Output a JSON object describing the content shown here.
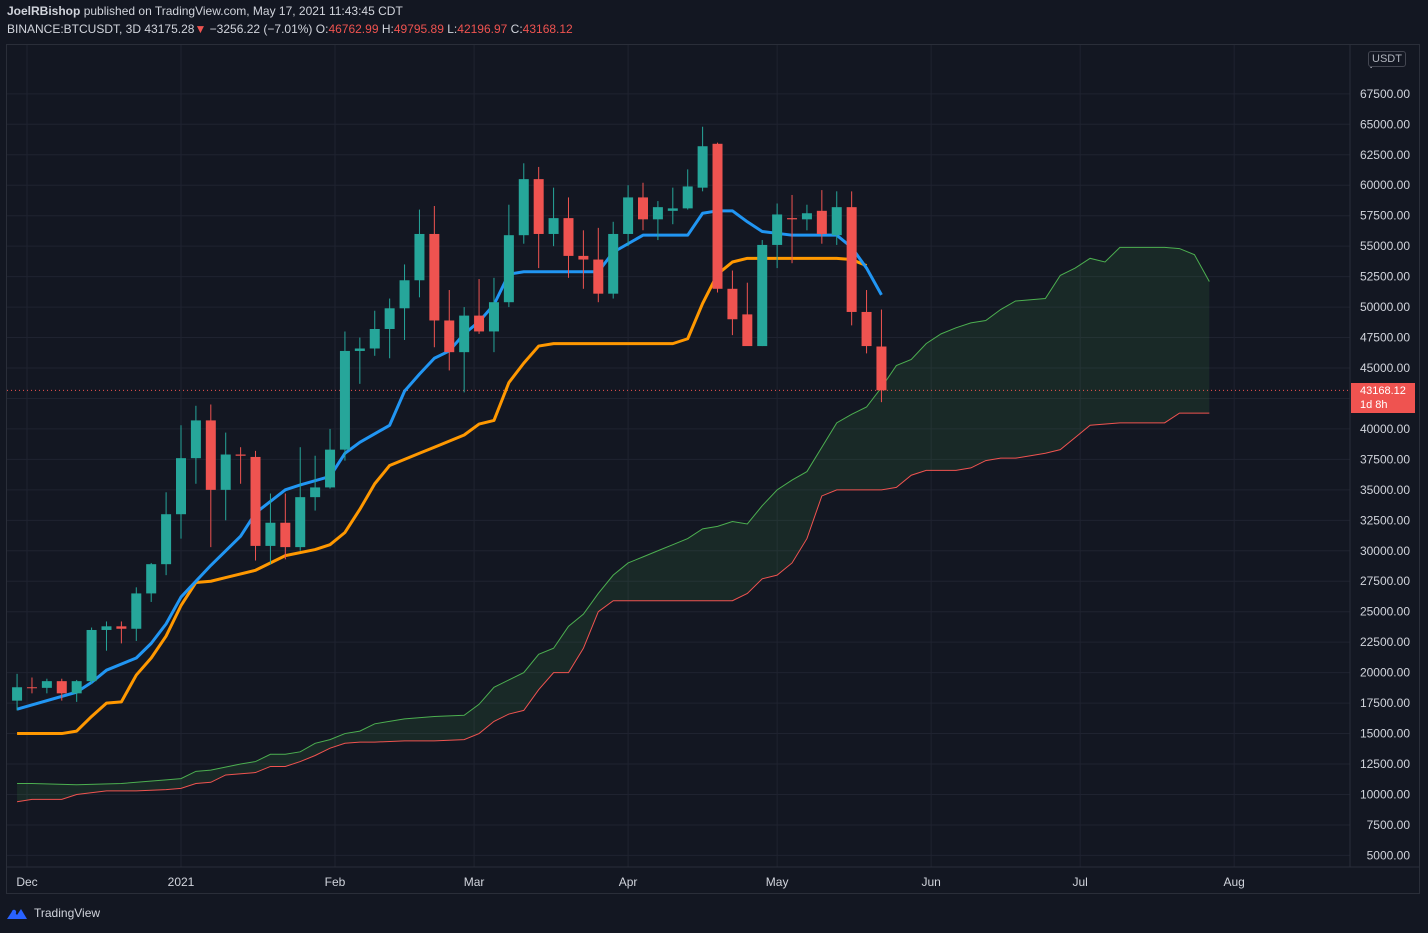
{
  "header": {
    "author": "JoelRBishop",
    "published_text": "published on TradingView.com, May 17, 2021 11:43:45 CDT",
    "symbol": "BINANCE:BTCUSDT, 3D",
    "last": "43175.28",
    "change_arrow": "▼",
    "change": "−3256.22 (−7.01%)",
    "o_label": "O:",
    "o": "46762.99",
    "h_label": "H:",
    "h": "49795.89",
    "l_label": "L:",
    "l": "42196.97",
    "c_label": "C:",
    "c": "43168.12"
  },
  "price_scale": {
    "currency": "USDT",
    "current_price": "43168.12",
    "countdown": "1d 8h",
    "top_label_partial": "7"
  },
  "footer": {
    "brand": "TradingView"
  },
  "colors": {
    "background": "#131722",
    "up": "#26a69a",
    "down": "#ef5350",
    "conversion_line": "#2196f3",
    "base_line": "#ff9800",
    "span_a": "#4caf50",
    "span_b": "#ef5350",
    "cloud_fill": "#1e3a2a",
    "grid": "#1f2330"
  },
  "chart_data": {
    "type": "candlestick",
    "title": "BINANCE:BTCUSDT, 3D",
    "indicator": "Ichimoku Cloud",
    "interval_days": 3,
    "y_axis": {
      "ticks": [
        5000,
        7500,
        10000,
        12500,
        15000,
        17500,
        20000,
        22500,
        25000,
        27500,
        30000,
        32500,
        35000,
        37500,
        40000,
        42500,
        45000,
        47500,
        50000,
        52500,
        55000,
        57500,
        60000,
        62500,
        65000,
        67500
      ],
      "tick_labels": [
        "5000.00",
        "7500.00",
        "10000.00",
        "12500.00",
        "15000.00",
        "17500.00",
        "20000.00",
        "22500.00",
        "25000.00",
        "27500.00",
        "30000.00",
        "32500.00",
        "35000.00",
        "37500.00",
        "40000.00",
        "42500.00",
        "45000.00",
        "47500.00",
        "50000.00",
        "52500.00",
        "55000.00",
        "57500.00",
        "60000.00",
        "62500.00",
        "65000.00",
        "67500.00"
      ],
      "range": [
        4000,
        70300
      ]
    },
    "x_axis": {
      "labels": [
        "Dec",
        "2021",
        "Feb",
        "Mar",
        "Apr",
        "May",
        "Jun",
        "Jul",
        "Aug"
      ],
      "label_dates": [
        "2020-12-01",
        "2021-01-01",
        "2021-02-01",
        "2021-03-01",
        "2021-04-01",
        "2021-05-01",
        "2021-06-01",
        "2021-07-01",
        "2021-08-01"
      ],
      "range": [
        "2020-11-28",
        "2021-08-16"
      ]
    },
    "candles": [
      {
        "date": "2020-11-29",
        "o": 17700,
        "h": 19900,
        "l": 16900,
        "c": 18800
      },
      {
        "date": "2020-12-02",
        "o": 18800,
        "h": 19600,
        "l": 18300,
        "c": 18750
      },
      {
        "date": "2020-12-05",
        "o": 18750,
        "h": 19500,
        "l": 18300,
        "c": 19300
      },
      {
        "date": "2020-12-08",
        "o": 19300,
        "h": 19500,
        "l": 17700,
        "c": 18300
      },
      {
        "date": "2020-12-11",
        "o": 18300,
        "h": 19400,
        "l": 17600,
        "c": 19300
      },
      {
        "date": "2020-12-14",
        "o": 19300,
        "h": 23700,
        "l": 19100,
        "c": 23500
      },
      {
        "date": "2020-12-17",
        "o": 23500,
        "h": 24200,
        "l": 21800,
        "c": 23800
      },
      {
        "date": "2020-12-20",
        "o": 23800,
        "h": 24200,
        "l": 22400,
        "c": 23600
      },
      {
        "date": "2020-12-23",
        "o": 23600,
        "h": 27000,
        "l": 22600,
        "c": 26500
      },
      {
        "date": "2020-12-26",
        "o": 26500,
        "h": 29000,
        "l": 25800,
        "c": 28900
      },
      {
        "date": "2020-12-29",
        "o": 28900,
        "h": 34800,
        "l": 28000,
        "c": 33000
      },
      {
        "date": "2021-01-01",
        "o": 33000,
        "h": 40300,
        "l": 31000,
        "c": 37600
      },
      {
        "date": "2021-01-04",
        "o": 37600,
        "h": 41900,
        "l": 35500,
        "c": 40700
      },
      {
        "date": "2021-01-07",
        "o": 40700,
        "h": 42000,
        "l": 30300,
        "c": 35000
      },
      {
        "date": "2021-01-10",
        "o": 35000,
        "h": 39700,
        "l": 32500,
        "c": 37900
      },
      {
        "date": "2021-01-13",
        "o": 37900,
        "h": 38500,
        "l": 35500,
        "c": 37800
      },
      {
        "date": "2021-01-16",
        "o": 37700,
        "h": 38200,
        "l": 29200,
        "c": 30400
      },
      {
        "date": "2021-01-19",
        "o": 30400,
        "h": 34700,
        "l": 28900,
        "c": 32300
      },
      {
        "date": "2021-01-22",
        "o": 32300,
        "h": 34700,
        "l": 29300,
        "c": 30300
      },
      {
        "date": "2021-01-25",
        "o": 30300,
        "h": 38500,
        "l": 30000,
        "c": 34400
      },
      {
        "date": "2021-01-28",
        "o": 34400,
        "h": 37800,
        "l": 33300,
        "c": 35200
      },
      {
        "date": "2021-01-31",
        "o": 35200,
        "h": 40000,
        "l": 35100,
        "c": 38300
      },
      {
        "date": "2021-02-03",
        "o": 38300,
        "h": 48000,
        "l": 37400,
        "c": 46400
      },
      {
        "date": "2021-02-06",
        "o": 46400,
        "h": 47500,
        "l": 43700,
        "c": 46600
      },
      {
        "date": "2021-02-09",
        "o": 46600,
        "h": 49700,
        "l": 46000,
        "c": 48200
      },
      {
        "date": "2021-02-12",
        "o": 48200,
        "h": 50700,
        "l": 45800,
        "c": 49900
      },
      {
        "date": "2021-02-15",
        "o": 49900,
        "h": 53500,
        "l": 47300,
        "c": 52200
      },
      {
        "date": "2021-02-18",
        "o": 52200,
        "h": 58000,
        "l": 50800,
        "c": 56000
      },
      {
        "date": "2021-02-21",
        "o": 56000,
        "h": 58300,
        "l": 46700,
        "c": 48900
      },
      {
        "date": "2021-02-24",
        "o": 48900,
        "h": 51400,
        "l": 44800,
        "c": 46300
      },
      {
        "date": "2021-02-27",
        "o": 46300,
        "h": 50000,
        "l": 43000,
        "c": 49300
      },
      {
        "date": "2021-03-02",
        "o": 49300,
        "h": 52300,
        "l": 47800,
        "c": 48000
      },
      {
        "date": "2021-03-05",
        "o": 48000,
        "h": 52400,
        "l": 46300,
        "c": 50400
      },
      {
        "date": "2021-03-08",
        "o": 50400,
        "h": 58400,
        "l": 50000,
        "c": 55900
      },
      {
        "date": "2021-03-11",
        "o": 55900,
        "h": 61800,
        "l": 55200,
        "c": 60500
      },
      {
        "date": "2021-03-14",
        "o": 60500,
        "h": 61500,
        "l": 53200,
        "c": 56000
      },
      {
        "date": "2021-03-17",
        "o": 56000,
        "h": 59800,
        "l": 55000,
        "c": 57300
      },
      {
        "date": "2021-03-20",
        "o": 57300,
        "h": 59000,
        "l": 52400,
        "c": 54200
      },
      {
        "date": "2021-03-23",
        "o": 54200,
        "h": 56300,
        "l": 51500,
        "c": 53900
      },
      {
        "date": "2021-03-26",
        "o": 53900,
        "h": 56500,
        "l": 50400,
        "c": 51100
      },
      {
        "date": "2021-03-29",
        "o": 51100,
        "h": 57000,
        "l": 50700,
        "c": 56000
      },
      {
        "date": "2021-04-01",
        "o": 56000,
        "h": 60000,
        "l": 55000,
        "c": 59000
      },
      {
        "date": "2021-04-04",
        "o": 59000,
        "h": 60200,
        "l": 56300,
        "c": 57200
      },
      {
        "date": "2021-04-07",
        "o": 57200,
        "h": 58700,
        "l": 55500,
        "c": 58200
      },
      {
        "date": "2021-04-10",
        "o": 57900,
        "h": 59800,
        "l": 56800,
        "c": 58100
      },
      {
        "date": "2021-04-13",
        "o": 58100,
        "h": 61300,
        "l": 58000,
        "c": 59900
      },
      {
        "date": "2021-04-16",
        "o": 59800,
        "h": 64800,
        "l": 59500,
        "c": 63200
      },
      {
        "date": "2021-04-19",
        "o": 63400,
        "h": 63500,
        "l": 51200,
        "c": 51500
      },
      {
        "date": "2021-04-22",
        "o": 51500,
        "h": 53000,
        "l": 47700,
        "c": 49000
      },
      {
        "date": "2021-04-25",
        "o": 49400,
        "h": 52000,
        "l": 46900,
        "c": 46800
      },
      {
        "date": "2021-04-28",
        "o": 46800,
        "h": 55500,
        "l": 46800,
        "c": 55100
      },
      {
        "date": "2021-05-01",
        "o": 55100,
        "h": 58500,
        "l": 53200,
        "c": 57600
      },
      {
        "date": "2021-05-04",
        "o": 57300,
        "h": 59200,
        "l": 53600,
        "c": 57200
      },
      {
        "date": "2021-05-07",
        "o": 57200,
        "h": 58400,
        "l": 56300,
        "c": 57700
      },
      {
        "date": "2021-05-10",
        "o": 57900,
        "h": 59600,
        "l": 55200,
        "c": 56000
      },
      {
        "date": "2021-05-13",
        "o": 55900,
        "h": 59500,
        "l": 55100,
        "c": 58200
      },
      {
        "date": "2021-05-16",
        "o": 58200,
        "h": 59500,
        "l": 48500,
        "c": 49600
      },
      {
        "date": "2021-05-19",
        "o": 49600,
        "h": 51400,
        "l": 46200,
        "c": 46800
      },
      {
        "date": "2021-05-22",
        "o": 46763,
        "h": 49796,
        "l": 42197,
        "c": 43168
      }
    ],
    "conversion_line": {
      "name": "Conversion Line",
      "dates": [
        "2020-11-29",
        "2020-12-11",
        "2020-12-14",
        "2020-12-17",
        "2020-12-23",
        "2020-12-26",
        "2020-12-29",
        "2021-01-01",
        "2021-01-07",
        "2021-01-13",
        "2021-01-16",
        "2021-01-22",
        "2021-01-25",
        "2021-01-31",
        "2021-02-03",
        "2021-02-06",
        "2021-02-12",
        "2021-02-15",
        "2021-02-18",
        "2021-02-21",
        "2021-02-24",
        "2021-02-27",
        "2021-03-02",
        "2021-03-05",
        "2021-03-08",
        "2021-03-11",
        "2021-03-26",
        "2021-03-29",
        "2021-04-04",
        "2021-04-13",
        "2021-04-16",
        "2021-04-19",
        "2021-04-22",
        "2021-04-25",
        "2021-04-28",
        "2021-05-04",
        "2021-05-13",
        "2021-05-16",
        "2021-05-19",
        "2021-05-22"
      ],
      "values": [
        17000,
        18400,
        19200,
        20200,
        21200,
        22400,
        24000,
        26200,
        28800,
        31200,
        33100,
        35000,
        35400,
        36100,
        38000,
        38900,
        40300,
        43100,
        44500,
        45800,
        46400,
        47800,
        48800,
        50200,
        52700,
        52900,
        52900,
        54500,
        55900,
        55900,
        57700,
        57900,
        57900,
        57000,
        56200,
        55900,
        55900,
        54900,
        53200,
        51000
      ]
    },
    "base_line": {
      "name": "Base Line",
      "dates": [
        "2020-11-29",
        "2020-12-08",
        "2020-12-11",
        "2020-12-14",
        "2020-12-17",
        "2020-12-20",
        "2020-12-23",
        "2020-12-26",
        "2020-12-29",
        "2021-01-01",
        "2021-01-04",
        "2021-01-07",
        "2021-01-10",
        "2021-01-16",
        "2021-01-22",
        "2021-01-28",
        "2021-01-31",
        "2021-02-03",
        "2021-02-06",
        "2021-02-09",
        "2021-02-12",
        "2021-02-15",
        "2021-02-18",
        "2021-02-21",
        "2021-02-24",
        "2021-02-27",
        "2021-03-02",
        "2021-03-05",
        "2021-03-08",
        "2021-03-11",
        "2021-03-14",
        "2021-03-17",
        "2021-03-23",
        "2021-03-29",
        "2021-04-04",
        "2021-04-10",
        "2021-04-13",
        "2021-04-16",
        "2021-04-19",
        "2021-04-22",
        "2021-04-25",
        "2021-04-28",
        "2021-05-01",
        "2021-05-13",
        "2021-05-16",
        "2021-05-19"
      ],
      "values": [
        15000,
        15000,
        15200,
        16400,
        17500,
        17600,
        19800,
        21200,
        23000,
        25500,
        27400,
        27500,
        27800,
        28400,
        29600,
        30100,
        30500,
        31500,
        33400,
        35500,
        37000,
        37500,
        38000,
        38500,
        39000,
        39500,
        40400,
        40700,
        43800,
        45400,
        46800,
        47000,
        47000,
        47000,
        47000,
        47000,
        47400,
        50300,
        52700,
        53700,
        54000,
        54000,
        54000,
        54000,
        53900,
        53400
      ]
    },
    "span_a": {
      "name": "Leading Span A",
      "dates": [
        "2020-11-29",
        "2020-12-02",
        "2020-12-11",
        "2020-12-20",
        "2020-12-29",
        "2021-01-01",
        "2021-01-04",
        "2021-01-07",
        "2021-01-13",
        "2021-01-16",
        "2021-01-19",
        "2021-01-22",
        "2021-01-25",
        "2021-01-28",
        "2021-01-31",
        "2021-02-03",
        "2021-02-06",
        "2021-02-09",
        "2021-02-15",
        "2021-02-21",
        "2021-02-27",
        "2021-03-02",
        "2021-03-05",
        "2021-03-08",
        "2021-03-11",
        "2021-03-14",
        "2021-03-17",
        "2021-03-20",
        "2021-03-23",
        "2021-03-26",
        "2021-03-29",
        "2021-04-01",
        "2021-04-04",
        "2021-04-07",
        "2021-04-10",
        "2021-04-13",
        "2021-04-16",
        "2021-04-19",
        "2021-04-22",
        "2021-04-25",
        "2021-04-28",
        "2021-05-01",
        "2021-05-04",
        "2021-05-07",
        "2021-05-10",
        "2021-05-13",
        "2021-05-16",
        "2021-05-19",
        "2021-05-22",
        "2021-05-25",
        "2021-05-28",
        "2021-05-31",
        "2021-06-03",
        "2021-06-06",
        "2021-06-09",
        "2021-06-12",
        "2021-06-15",
        "2021-06-18",
        "2021-06-24",
        "2021-06-27",
        "2021-06-30",
        "2021-07-03",
        "2021-07-06",
        "2021-07-09",
        "2021-07-15",
        "2021-07-18",
        "2021-07-21",
        "2021-07-24",
        "2021-07-27"
      ],
      "values": [
        10900,
        10900,
        10800,
        10900,
        11200,
        11300,
        11900,
        12000,
        12500,
        12700,
        13300,
        13300,
        13500,
        14200,
        14500,
        15000,
        15200,
        15800,
        16200,
        16400,
        16500,
        17400,
        18800,
        19400,
        20000,
        21500,
        22000,
        23800,
        24800,
        26500,
        28000,
        29000,
        29500,
        30000,
        30500,
        31000,
        31800,
        32000,
        32400,
        32200,
        33700,
        35000,
        35800,
        36500,
        38500,
        40500,
        41200,
        41800,
        43400,
        45200,
        45700,
        47000,
        47800,
        48300,
        48700,
        48900,
        49800,
        50500,
        50700,
        52600,
        53200,
        54000,
        53700,
        54900,
        54900,
        54900,
        54800,
        54300,
        52100
      ]
    },
    "span_b": {
      "name": "Leading Span B",
      "dates": [
        "2020-11-29",
        "2020-12-02",
        "2020-12-08",
        "2020-12-11",
        "2020-12-17",
        "2020-12-23",
        "2020-12-29",
        "2021-01-01",
        "2021-01-04",
        "2021-01-07",
        "2021-01-10",
        "2021-01-16",
        "2021-01-19",
        "2021-01-22",
        "2021-01-25",
        "2021-01-28",
        "2021-01-31",
        "2021-02-03",
        "2021-02-06",
        "2021-02-09",
        "2021-02-15",
        "2021-02-21",
        "2021-02-27",
        "2021-03-02",
        "2021-03-05",
        "2021-03-08",
        "2021-03-11",
        "2021-03-14",
        "2021-03-17",
        "2021-03-20",
        "2021-03-23",
        "2021-03-26",
        "2021-03-29",
        "2021-04-01",
        "2021-04-04",
        "2021-04-07",
        "2021-04-10",
        "2021-04-13",
        "2021-04-16",
        "2021-04-19",
        "2021-04-22",
        "2021-04-25",
        "2021-04-28",
        "2021-05-01",
        "2021-05-04",
        "2021-05-07",
        "2021-05-10",
        "2021-05-13",
        "2021-05-16",
        "2021-05-19",
        "2021-05-22",
        "2021-05-25",
        "2021-05-28",
        "2021-05-31",
        "2021-06-03",
        "2021-06-06",
        "2021-06-09",
        "2021-06-12",
        "2021-06-15",
        "2021-06-18",
        "2021-06-21",
        "2021-06-24",
        "2021-06-27",
        "2021-06-30",
        "2021-07-03",
        "2021-07-09",
        "2021-07-12",
        "2021-07-15",
        "2021-07-18",
        "2021-07-21",
        "2021-07-24",
        "2021-07-27"
      ],
      "values": [
        9400,
        9600,
        9600,
        10000,
        10300,
        10300,
        10400,
        10500,
        10900,
        11000,
        11600,
        11800,
        12300,
        12300,
        12700,
        13200,
        13800,
        14200,
        14300,
        14300,
        14400,
        14400,
        14500,
        15000,
        16000,
        16600,
        16900,
        18600,
        20000,
        20000,
        22000,
        25000,
        25900,
        25900,
        25900,
        25900,
        25900,
        25900,
        25900,
        25900,
        25900,
        26500,
        27700,
        28000,
        29000,
        31000,
        34500,
        35000,
        35000,
        35000,
        35000,
        35200,
        36200,
        36600,
        36600,
        36600,
        36800,
        37400,
        37600,
        37600,
        37800,
        38000,
        38300,
        39300,
        40300,
        40500,
        40500,
        40500,
        40500,
        41300,
        41300,
        41300
      ]
    }
  }
}
